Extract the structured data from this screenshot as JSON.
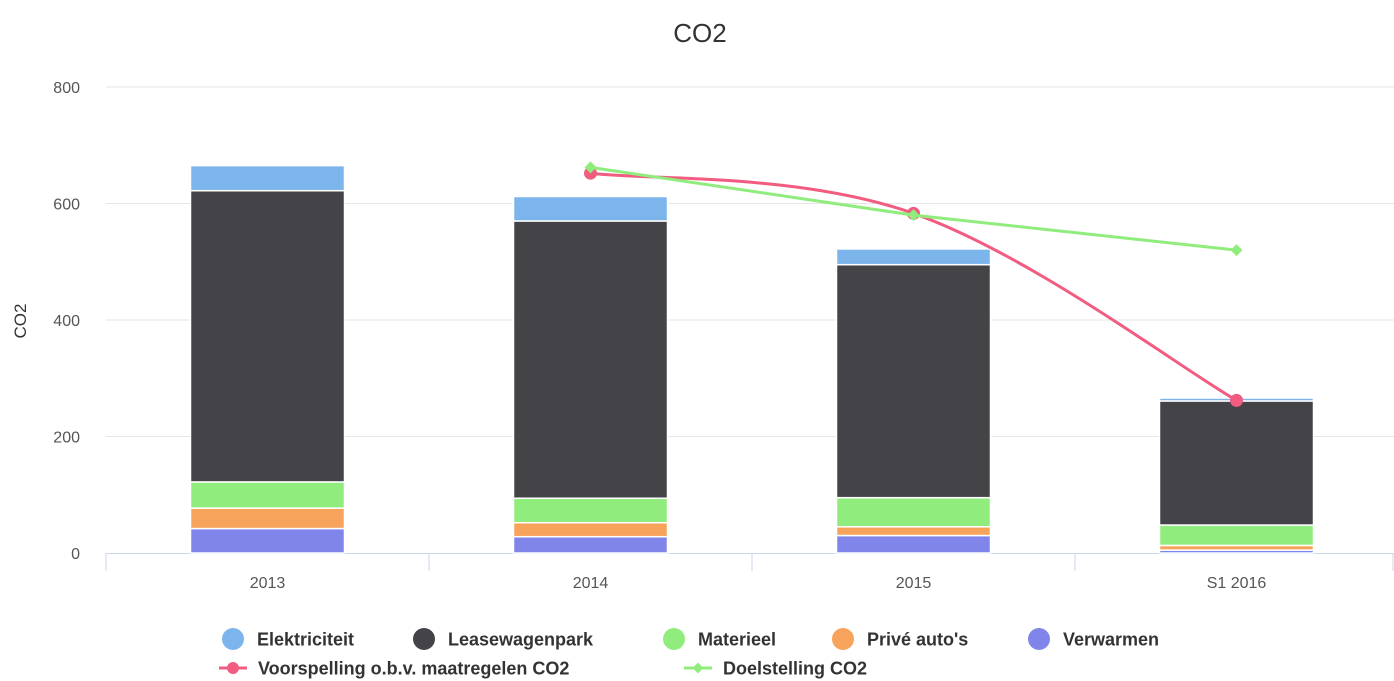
{
  "chart_data": {
    "type": "bar",
    "title": "CO2",
    "ylabel": "CO2",
    "xlabel": "",
    "ylim": [
      0,
      800
    ],
    "yticks": [
      0,
      200,
      400,
      600,
      800
    ],
    "grid": true,
    "legend_placement": "bottom",
    "categories": [
      "2013",
      "2014",
      "2015",
      "S1 2016"
    ],
    "stacked_series": [
      {
        "name": "Verwarmen",
        "color": "#8085e9",
        "values": [
          42,
          28,
          30,
          5
        ]
      },
      {
        "name": "Privé auto's",
        "color": "#f7a35c",
        "values": [
          35,
          24,
          15,
          8
        ]
      },
      {
        "name": "Materieel",
        "color": "#90ed7d",
        "values": [
          45,
          42,
          50,
          35
        ]
      },
      {
        "name": "Leasewagenpark",
        "color": "#434348",
        "values": [
          500,
          476,
          400,
          213
        ]
      },
      {
        "name": "Elektriciteit",
        "color": "#7cb5ec",
        "values": [
          43,
          42,
          27,
          5
        ]
      }
    ],
    "line_series": [
      {
        "name": "Voorspelling o.b.v. maatregelen CO2",
        "color": "#f15c80",
        "marker": "circle",
        "values": [
          null,
          652,
          583,
          262
        ]
      },
      {
        "name": "Doelstelling CO2",
        "color": "#90ed7d",
        "marker": "diamond",
        "values": [
          null,
          662,
          580,
          520
        ]
      }
    ],
    "legend": [
      {
        "name": "Elektriciteit",
        "color": "#7cb5ec",
        "symbol": "circle"
      },
      {
        "name": "Leasewagenpark",
        "color": "#434348",
        "symbol": "circle"
      },
      {
        "name": "Materieel",
        "color": "#90ed7d",
        "symbol": "circle"
      },
      {
        "name": "Privé auto's",
        "color": "#f7a35c",
        "symbol": "circle"
      },
      {
        "name": "Verwarmen",
        "color": "#8085e9",
        "symbol": "circle"
      },
      {
        "name": "Voorspelling o.b.v. maatregelen CO2",
        "color": "#f15c80",
        "symbol": "line-circle"
      },
      {
        "name": "Doelstelling CO2",
        "color": "#90ed7d",
        "symbol": "line-diamond"
      }
    ]
  }
}
